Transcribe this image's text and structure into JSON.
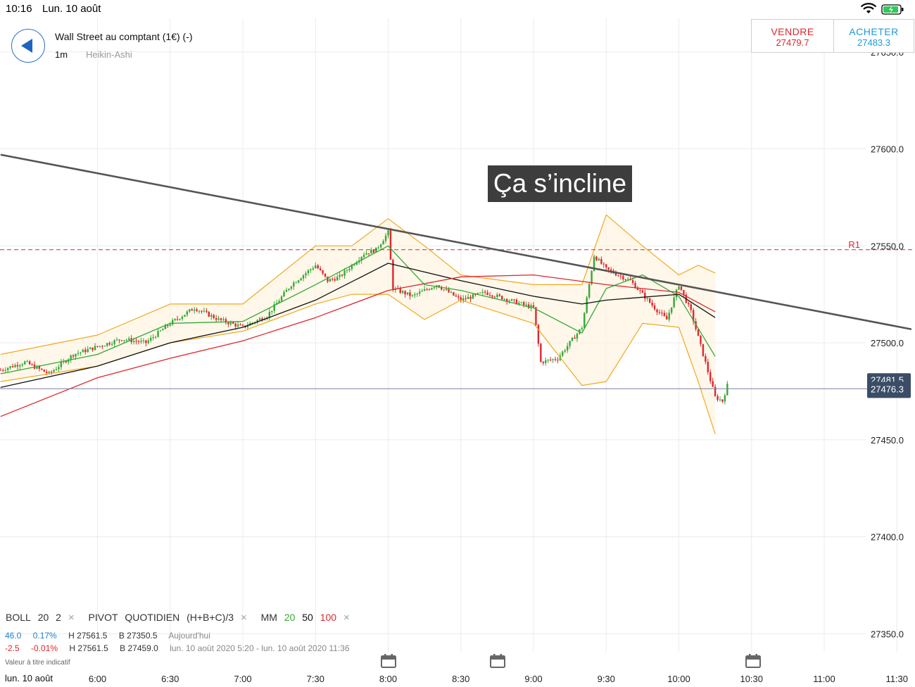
{
  "status_bar": {
    "time": "10:16",
    "date": "Lun. 10 août"
  },
  "header": {
    "instrument": "Wall Street au comptant (1€) (-)",
    "timeframe": "1m",
    "chart_type": "Heikin-Ashi"
  },
  "trade": {
    "sell_label": "VENDRE",
    "sell_price": "27479.7",
    "buy_label": "ACHETER",
    "buy_price": "27483.3"
  },
  "annotation": "Ça s’incline",
  "indicators": {
    "boll": "BOLL",
    "boll_p1": "20",
    "boll_p2": "2",
    "pivot": "PIVOT",
    "pivot_period": "QUOTIDIEN",
    "pivot_formula": "(H+B+C)/3",
    "mm": "MM",
    "mm_20": "20",
    "mm_50": "50",
    "mm_100": "100",
    "close": "×"
  },
  "info_row1": {
    "value": "46.0",
    "pct": "0.17%",
    "high": "H 27561.5",
    "low": "B 27350.5",
    "label": "Aujourd'hui"
  },
  "info_row2": {
    "value": "-2.5",
    "pct": "-0.01%",
    "high": "H 27561.5",
    "low": "B 27459.0",
    "range": "lun. 10 août 2020 5:20 - lun. 10 août 2020 11:36"
  },
  "disclaimer": "Valeur à titre indicatif",
  "x_date": "lun. 10 août",
  "chart_data": {
    "type": "candlestick",
    "ylim": [
      27335,
      27660
    ],
    "y_ticks": [
      "27350.0",
      "27400.0",
      "27450.0",
      "27500.0",
      "27550.0",
      "27600.0",
      "27650.0"
    ],
    "x_ticks": [
      "6:00",
      "6:30",
      "7:00",
      "7:30",
      "8:00",
      "8:30",
      "9:00",
      "9:30",
      "10:00",
      "10:30",
      "11:00",
      "11:30"
    ],
    "pivot_r1": {
      "label": "R1",
      "value": 27548
    },
    "current_price": {
      "value": "27476.3",
      "value_behind": "27481.5"
    },
    "trendline": [
      [
        "5:20",
        27597
      ],
      [
        "11:36",
        27507
      ]
    ],
    "price_path": [
      [
        "5:20",
        27486
      ],
      [
        "5:30",
        27490
      ],
      [
        "5:40",
        27484
      ],
      [
        "5:50",
        27494
      ],
      [
        "6:00",
        27498
      ],
      [
        "6:10",
        27502
      ],
      [
        "6:20",
        27500
      ],
      [
        "6:30",
        27510
      ],
      [
        "6:40",
        27518
      ],
      [
        "6:50",
        27512
      ],
      [
        "7:00",
        27508
      ],
      [
        "7:10",
        27514
      ],
      [
        "7:20",
        27530
      ],
      [
        "7:30",
        27540
      ],
      [
        "7:35",
        27532
      ],
      [
        "7:40",
        27534
      ],
      [
        "7:50",
        27546
      ],
      [
        "7:55",
        27548
      ],
      [
        "8:00",
        27557
      ],
      [
        "8:02",
        27528
      ],
      [
        "8:10",
        27524
      ],
      [
        "8:20",
        27530
      ],
      [
        "8:30",
        27522
      ],
      [
        "8:40",
        27526
      ],
      [
        "8:50",
        27522
      ],
      [
        "9:00",
        27518
      ],
      [
        "9:03",
        27490
      ],
      [
        "9:10",
        27492
      ],
      [
        "9:20",
        27508
      ],
      [
        "9:25",
        27545
      ],
      [
        "9:30",
        27538
      ],
      [
        "9:40",
        27532
      ],
      [
        "9:50",
        27518
      ],
      [
        "9:55",
        27512
      ],
      [
        "10:00",
        27530
      ],
      [
        "10:05",
        27516
      ],
      [
        "10:10",
        27494
      ],
      [
        "10:15",
        27472
      ],
      [
        "10:18",
        27470
      ],
      [
        "10:20",
        27478
      ]
    ],
    "bollinger": {
      "upper": [
        [
          "5:20",
          27494
        ],
        [
          "6:00",
          27504
        ],
        [
          "6:30",
          27520
        ],
        [
          "7:00",
          27520
        ],
        [
          "7:30",
          27550
        ],
        [
          "7:45",
          27550
        ],
        [
          "8:00",
          27564
        ],
        [
          "8:15",
          27550
        ],
        [
          "8:30",
          27535
        ],
        [
          "9:00",
          27530
        ],
        [
          "9:20",
          27530
        ],
        [
          "9:30",
          27566
        ],
        [
          "9:45",
          27550
        ],
        [
          "10:00",
          27535
        ],
        [
          "10:08",
          27540
        ],
        [
          "10:15",
          27536
        ]
      ],
      "lower": [
        [
          "5:20",
          27480
        ],
        [
          "6:00",
          27488
        ],
        [
          "6:30",
          27500
        ],
        [
          "7:00",
          27506
        ],
        [
          "7:30",
          27520
        ],
        [
          "7:45",
          27525
        ],
        [
          "8:00",
          27525
        ],
        [
          "8:15",
          27512
        ],
        [
          "8:30",
          27522
        ],
        [
          "9:00",
          27510
        ],
        [
          "9:20",
          27478
        ],
        [
          "9:30",
          27480
        ],
        [
          "9:45",
          27510
        ],
        [
          "10:00",
          27508
        ],
        [
          "10:08",
          27480
        ],
        [
          "10:15",
          27453
        ]
      ]
    },
    "moving_averages": [
      {
        "name": "20",
        "color": "#35a834",
        "values": [
          [
            "5:20",
            27484
          ],
          [
            "6:00",
            27494
          ],
          [
            "6:30",
            27510
          ],
          [
            "7:00",
            27511
          ],
          [
            "7:30",
            27530
          ],
          [
            "8:00",
            27550
          ],
          [
            "8:15",
            27530
          ],
          [
            "8:30",
            27527
          ],
          [
            "9:00",
            27518
          ],
          [
            "9:20",
            27505
          ],
          [
            "9:30",
            27528
          ],
          [
            "9:45",
            27535
          ],
          [
            "10:00",
            27524
          ],
          [
            "10:15",
            27493
          ]
        ]
      },
      {
        "name": "50",
        "color": "#111111",
        "values": [
          [
            "5:20",
            27477
          ],
          [
            "6:00",
            27488
          ],
          [
            "6:30",
            27500
          ],
          [
            "7:00",
            27508
          ],
          [
            "7:30",
            27522
          ],
          [
            "8:00",
            27541
          ],
          [
            "8:30",
            27532
          ],
          [
            "9:00",
            27524
          ],
          [
            "9:20",
            27520
          ],
          [
            "9:30",
            27522
          ],
          [
            "10:00",
            27525
          ],
          [
            "10:15",
            27513
          ]
        ]
      },
      {
        "name": "100",
        "color": "#e0262c",
        "values": [
          [
            "5:20",
            27462
          ],
          [
            "6:00",
            27482
          ],
          [
            "6:30",
            27492
          ],
          [
            "7:00",
            27501
          ],
          [
            "7:30",
            27513
          ],
          [
            "8:00",
            27527
          ],
          [
            "8:30",
            27534
          ],
          [
            "9:00",
            27535
          ],
          [
            "9:30",
            27530
          ],
          [
            "10:00",
            27526
          ],
          [
            "10:15",
            27516
          ]
        ]
      }
    ]
  }
}
